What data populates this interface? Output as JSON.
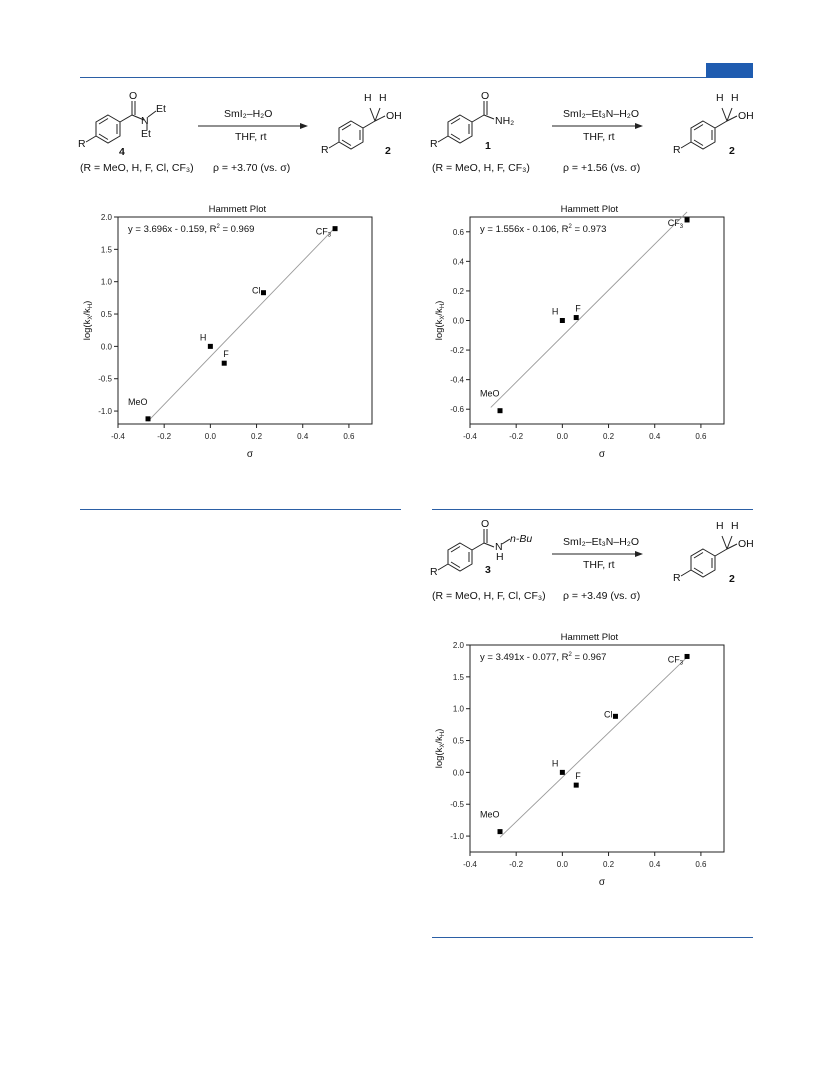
{
  "colors": {
    "accent": "#1f5cb0",
    "rule": "#2b5fa5",
    "fit_line": "#9a9a9a",
    "marker": "#000000"
  },
  "schemes": [
    {
      "reagent_top": "SmI₂–H₂O",
      "reagent_bottom": "THF, rt",
      "substrate_number": "4",
      "product_number": "2",
      "substrate_labels": {
        "R": "R",
        "O": "O",
        "N": "N",
        "Et1": "Et",
        "Et2": "Et"
      },
      "product_labels": {
        "H1": "H",
        "H2": "H",
        "OH": "OH",
        "R": "R"
      },
      "conditions": "(R = MeO, H, F, Cl, CF₃)",
      "rho": "ρ = +3.70 (vs. σ)"
    },
    {
      "reagent_top": "SmI₂–Et₃N–H₂O",
      "reagent_bottom": "THF, rt",
      "substrate_number": "1",
      "product_number": "2",
      "substrate_labels": {
        "R": "R",
        "O": "O",
        "NH2": "NH₂"
      },
      "product_labels": {
        "H1": "H",
        "H2": "H",
        "OH": "OH",
        "R": "R"
      },
      "conditions": "(R = MeO, H, F, CF₃)",
      "rho": "ρ = +1.56 (vs. σ)"
    },
    {
      "reagent_top": "SmI₂–Et₃N–H₂O",
      "reagent_bottom": "THF, rt",
      "substrate_number": "3",
      "product_number": "2",
      "substrate_labels": {
        "R": "R",
        "O": "O",
        "N": "N",
        "nBu": "n-Bu",
        "H": "H"
      },
      "product_labels": {
        "H1": "H",
        "H2": "H",
        "OH": "OH",
        "R": "R"
      },
      "conditions": "(R = MeO, H, F, Cl, CF₃)",
      "rho": "ρ = +3.49 (vs. σ)"
    }
  ],
  "chart_data": [
    {
      "type": "scatter",
      "title": "Hammett Plot",
      "equation": "y = 3.696x - 0.159, R",
      "equation_tail": " = 0.969",
      "xlabel": "σ",
      "ylabel": "log(k",
      "xlim": [
        -0.4,
        0.7
      ],
      "ylim": [
        -1.2,
        2.0
      ],
      "xticks": [
        "-0.4",
        "-0.2",
        "0.0",
        "0.2",
        "0.4",
        "0.6"
      ],
      "yticks": [
        "-1.0",
        "-0.5",
        "0.0",
        "0.5",
        "1.0",
        "1.5",
        "2.0"
      ],
      "points": [
        {
          "label": "MeO",
          "x": -0.27,
          "y": -1.12
        },
        {
          "label": "H",
          "x": 0.0,
          "y": 0.0
        },
        {
          "label": "F",
          "x": 0.06,
          "y": -0.26
        },
        {
          "label": "Cl",
          "x": 0.23,
          "y": 0.83
        },
        {
          "label": "CF",
          "x": 0.54,
          "y": 1.82
        }
      ],
      "fit": {
        "slope": 3.696,
        "intercept": -0.159,
        "x_range": [
          -0.27,
          0.54
        ]
      }
    },
    {
      "type": "scatter",
      "title": "Hammett Plot",
      "equation": "y = 1.556x - 0.106, R",
      "equation_tail": " = 0.973",
      "xlabel": "σ",
      "ylabel": "log(k",
      "xlim": [
        -0.4,
        0.7
      ],
      "ylim": [
        -0.7,
        0.7
      ],
      "xticks": [
        "-0.4",
        "-0.2",
        "0.0",
        "0.2",
        "0.4",
        "0.6"
      ],
      "yticks": [
        "-0.6",
        "-0.4",
        "-0.2",
        "0.0",
        "0.2",
        "0.4",
        "0.6"
      ],
      "points": [
        {
          "label": "MeO",
          "x": -0.27,
          "y": -0.61
        },
        {
          "label": "H",
          "x": 0.0,
          "y": 0.0
        },
        {
          "label": "F",
          "x": 0.06,
          "y": 0.02
        },
        {
          "label": "CF",
          "x": 0.54,
          "y": 0.68
        }
      ],
      "fit": {
        "slope": 1.556,
        "intercept": -0.106,
        "x_range": [
          -0.31,
          0.54
        ]
      }
    },
    {
      "type": "scatter",
      "title": "Hammett Plot",
      "equation": "y = 3.491x - 0.077, R",
      "equation_tail": " = 0.967",
      "xlabel": "σ",
      "ylabel": "log(k",
      "xlim": [
        -0.4,
        0.7
      ],
      "ylim": [
        -1.25,
        2.0
      ],
      "xticks": [
        "-0.4",
        "-0.2",
        "0.0",
        "0.2",
        "0.4",
        "0.6"
      ],
      "yticks": [
        "-1.0",
        "-0.5",
        "0.0",
        "0.5",
        "1.0",
        "1.5",
        "2.0"
      ],
      "points": [
        {
          "label": "MeO",
          "x": -0.27,
          "y": -0.93
        },
        {
          "label": "H",
          "x": 0.0,
          "y": 0.0
        },
        {
          "label": "F",
          "x": 0.06,
          "y": -0.2
        },
        {
          "label": "Cl",
          "x": 0.23,
          "y": 0.88
        },
        {
          "label": "CF",
          "x": 0.54,
          "y": 1.82
        }
      ],
      "fit": {
        "slope": 3.491,
        "intercept": -0.077,
        "x_range": [
          -0.27,
          0.54
        ]
      }
    }
  ]
}
